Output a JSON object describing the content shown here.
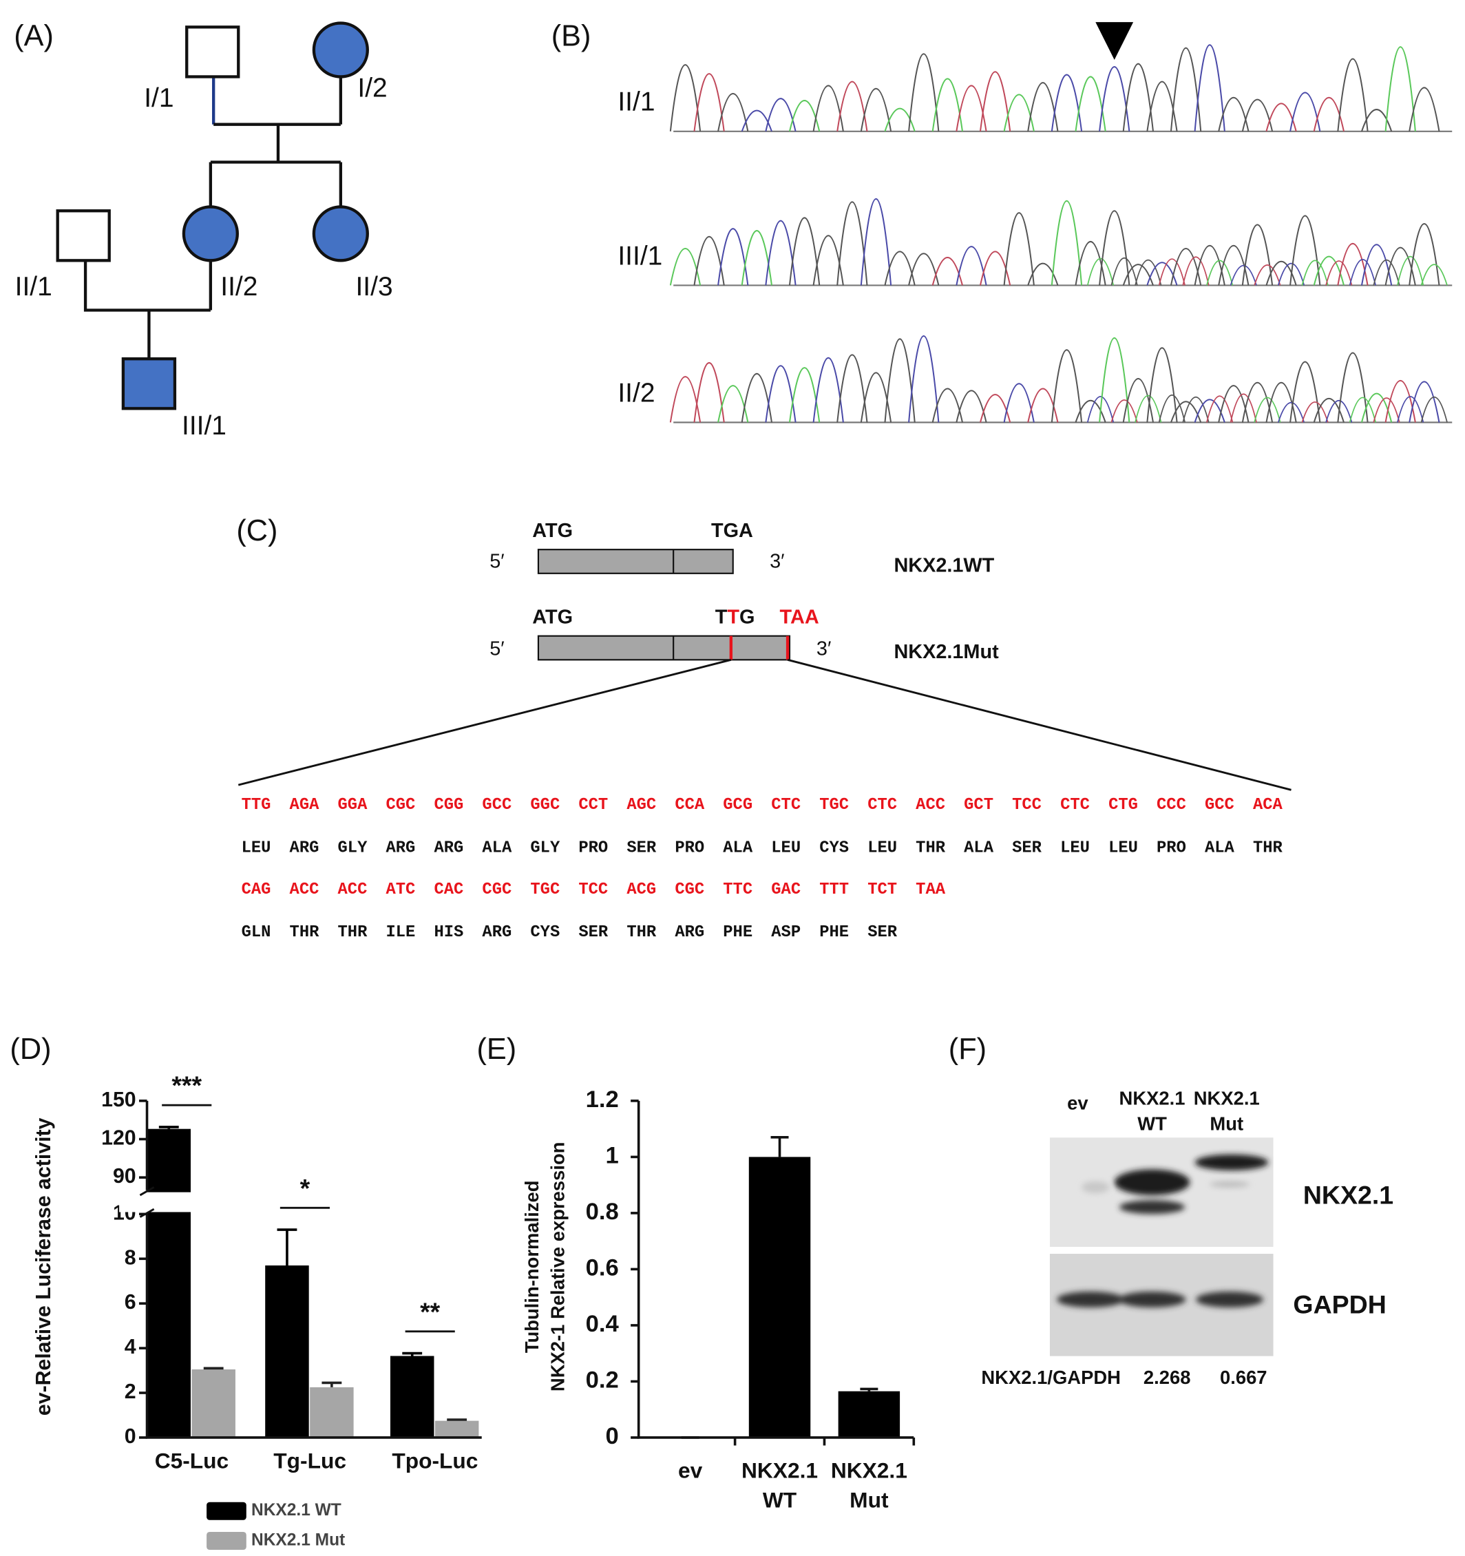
{
  "panel_labels": [
    "(A)",
    "(B)",
    "(C)",
    "(D)",
    "(E)",
    "(F)"
  ],
  "pedigree": {
    "affected_color": "#4472c4",
    "nodes": [
      {
        "label": "I/1",
        "shape": "square",
        "affected": false
      },
      {
        "label": "I/2",
        "shape": "circle",
        "affected": true
      },
      {
        "label": "II/1",
        "shape": "square",
        "affected": false
      },
      {
        "label": "II/2",
        "shape": "circle",
        "affected": true
      },
      {
        "label": "II/3",
        "shape": "circle",
        "affected": true
      },
      {
        "label": "III/1",
        "shape": "square",
        "affected": true
      }
    ]
  },
  "chromatograms": {
    "labels": [
      "II/1",
      "III/1",
      "II/2"
    ]
  },
  "construct": {
    "wt": {
      "start": "ATG",
      "stop": "TGA",
      "five": "5′",
      "three": "3′",
      "name": "NKX2.1WT"
    },
    "mut": {
      "start": "ATG",
      "codon_parts": [
        "T",
        "T",
        "G"
      ],
      "stop": "TAA",
      "five": "5′",
      "three": "3′",
      "name": "NKX2.1Mut"
    }
  },
  "sequence": {
    "codon_color": "#e8141c",
    "codons": [
      [
        "TTG",
        "AGA",
        "GGA",
        "CGC",
        "CGG",
        "GCC",
        "GGC",
        "CCT",
        "AGC",
        "CCA",
        "GCG",
        "CTC",
        "TGC",
        "CTC",
        "ACC",
        "GCT",
        "TCC",
        "CTC",
        "CTG",
        "CCC",
        "GCC",
        "ACA"
      ],
      [
        "CAG",
        "ACC",
        "ACC",
        "ATC",
        "CAC",
        "CGC",
        "TGC",
        "TCC",
        "ACG",
        "CGC",
        "TTC",
        "GAC",
        "TTT",
        "TCT",
        "TAA"
      ]
    ],
    "amino_acids": [
      [
        "LEU",
        "ARG",
        "GLY",
        "ARG",
        "ARG",
        "ALA",
        "GLY",
        "PRO",
        "SER",
        "PRO",
        "ALA",
        "LEU",
        "CYS",
        "LEU",
        "THR",
        "ALA",
        "SER",
        "LEU",
        "LEU",
        "PRO",
        "ALA",
        "THR"
      ],
      [
        "GLN",
        "THR",
        "THR",
        "ILE",
        "HIS",
        "ARG",
        "CYS",
        "SER",
        "THR",
        "ARG",
        "PHE",
        "ASP",
        "PHE",
        "SER"
      ]
    ]
  },
  "chart_data": [
    {
      "type": "bar",
      "ylabel": "ev-Relative Luciferase activity",
      "categories": [
        "C5-Luc",
        "Tg-Luc",
        "Tpo-Luc"
      ],
      "series": [
        {
          "name": "NKX2.1 WT",
          "color": "#000000",
          "values": [
            128,
            7.7,
            3.65
          ],
          "errors": [
            1.5,
            1.6,
            0.12
          ]
        },
        {
          "name": "NKX2.1 Mut",
          "color": "#a6a6a6",
          "values": [
            3.05,
            2.25,
            0.75
          ],
          "errors": [
            0.05,
            0.2,
            0.05
          ]
        }
      ],
      "annotations": [
        "***",
        "*",
        "**"
      ],
      "ylim": [
        0,
        150
      ],
      "axis_break": [
        10,
        80
      ],
      "yticks": [
        0,
        2,
        4,
        6,
        8,
        10,
        90,
        120,
        150
      ],
      "legend": "bottom"
    },
    {
      "type": "bar",
      "ylabel": [
        "Tubulin-normalized",
        "NKX2-1 Relative expression"
      ],
      "categories": [
        "ev",
        "NKX2.1 WT",
        "NKX2.1 Mut"
      ],
      "values": [
        0,
        1.0,
        0.165
      ],
      "errors": [
        0,
        0.07,
        0.008
      ],
      "color": "#000000",
      "ylim": [
        0,
        1.2
      ],
      "yticks": [
        0,
        0.2,
        0.4,
        0.6,
        0.8,
        1,
        1.2
      ]
    }
  ],
  "blot": {
    "lanes": [
      "ev",
      "NKX2.1 WT",
      "NKX2.1 Mut"
    ],
    "proteins": [
      "NKX2.1",
      "GAPDH"
    ],
    "ratio_label": "NKX2.1/GAPDH",
    "ratios": [
      2.268,
      0.667
    ]
  }
}
